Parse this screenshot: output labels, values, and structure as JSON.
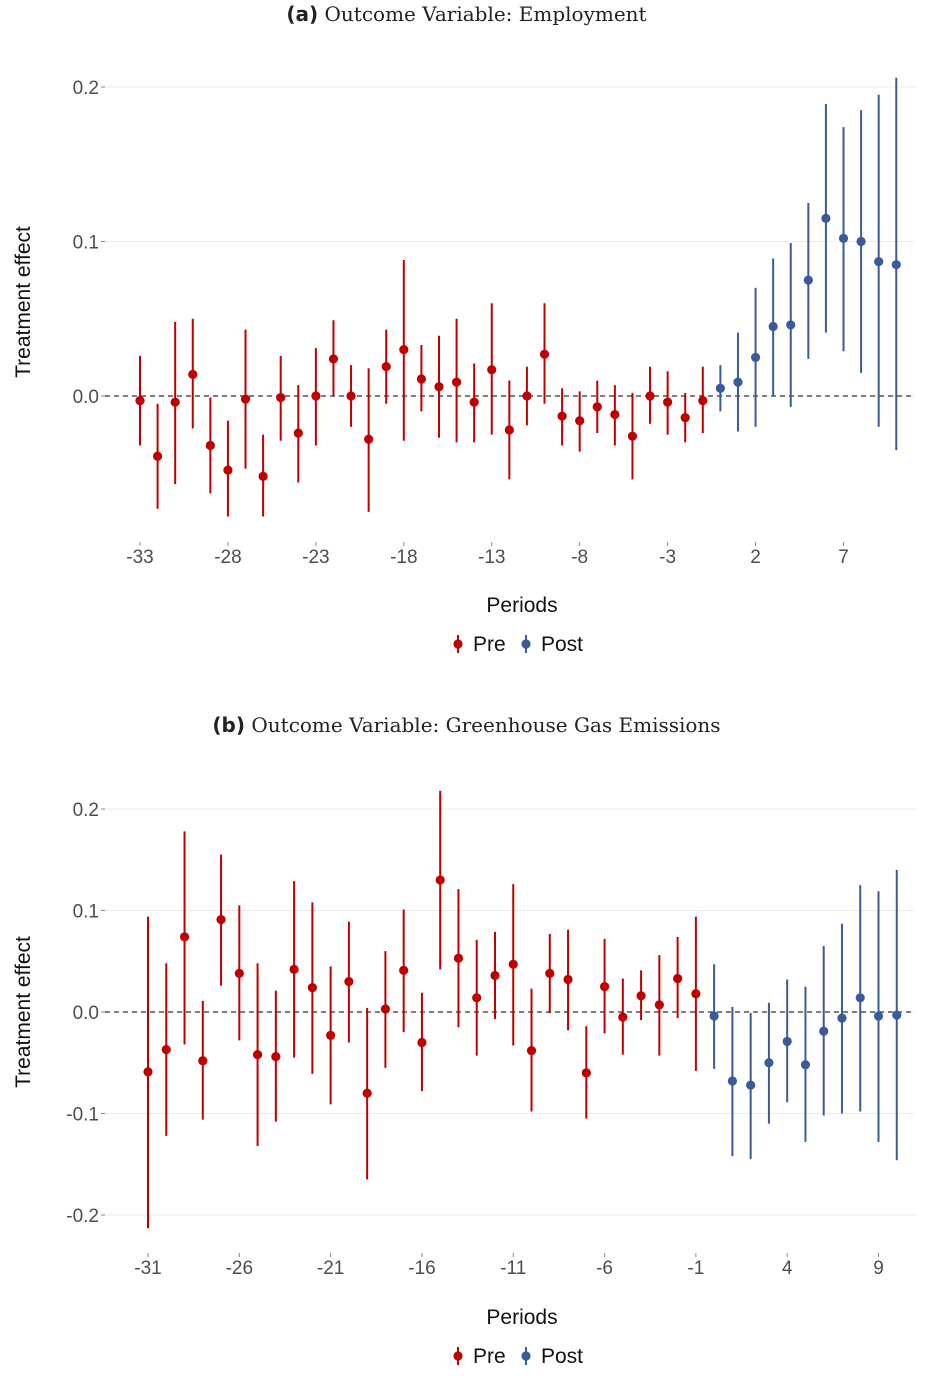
{
  "charts_meta": {
    "pre_color": "#c00000",
    "post_color": "#3a5a9a"
  },
  "chart_data": [
    {
      "type": "scatter",
      "panel_tag": "(a)",
      "title": "Outcome Variable: Employment",
      "xlabel": "Periods",
      "ylabel": "Treatment effect",
      "legend": [
        "Pre",
        "Post"
      ],
      "legend_placement": "bottom",
      "grid": true,
      "reference_line": 0.0,
      "xlim": [
        -34,
        12
      ],
      "ylim": [
        -0.1,
        0.2
      ],
      "xticks": [
        -33,
        -28,
        -23,
        -18,
        -13,
        -8,
        -3,
        2,
        7
      ],
      "xtick_labels": [
        "-33",
        "-28",
        "-23",
        "-18",
        "-13",
        "-8",
        "-3",
        "2",
        "7"
      ],
      "yticks": [
        0.0,
        0.1,
        0.2
      ],
      "ytick_labels": [
        "0.0",
        "0.1",
        "0.2"
      ],
      "series": [
        {
          "name": "Pre",
          "x": [
            -33,
            -32,
            -31,
            -30,
            -29,
            -28,
            -27,
            -26,
            -25,
            -24,
            -23,
            -22,
            -21,
            -20,
            -19,
            -18,
            -17,
            -16,
            -15,
            -14,
            -13,
            -12,
            -11,
            -10,
            -9,
            -8,
            -7,
            -6,
            -5,
            -4,
            -3,
            -2,
            -1
          ],
          "y": [
            -0.003,
            -0.039,
            -0.004,
            0.014,
            -0.032,
            -0.048,
            -0.002,
            -0.052,
            -0.001,
            -0.024,
            0.0,
            0.024,
            0.0,
            -0.028,
            0.019,
            0.03,
            0.011,
            0.006,
            0.009,
            -0.004,
            0.017,
            -0.022,
            0.0,
            0.027,
            -0.013,
            -0.016,
            -0.007,
            -0.012,
            -0.026,
            0.0,
            -0.004,
            -0.014,
            -0.003
          ],
          "lower": [
            -0.032,
            -0.073,
            -0.057,
            -0.021,
            -0.063,
            -0.078,
            -0.047,
            -0.078,
            -0.029,
            -0.056,
            -0.032,
            0.0,
            -0.02,
            -0.075,
            -0.005,
            -0.029,
            -0.01,
            -0.027,
            -0.03,
            -0.03,
            -0.025,
            -0.054,
            -0.019,
            -0.005,
            -0.032,
            -0.036,
            -0.024,
            -0.032,
            -0.054,
            -0.018,
            -0.025,
            -0.03,
            -0.024
          ],
          "upper": [
            0.026,
            -0.005,
            0.048,
            0.05,
            -0.001,
            -0.016,
            0.043,
            -0.025,
            0.026,
            0.007,
            0.031,
            0.049,
            0.02,
            0.018,
            0.043,
            0.088,
            0.033,
            0.039,
            0.05,
            0.021,
            0.06,
            0.01,
            0.019,
            0.06,
            0.005,
            0.003,
            0.01,
            0.007,
            0.002,
            0.019,
            0.016,
            0.002,
            0.019
          ]
        },
        {
          "name": "Post",
          "x": [
            0,
            1,
            2,
            3,
            4,
            5,
            6,
            7,
            8,
            9,
            10
          ],
          "y": [
            0.005,
            0.009,
            0.025,
            0.045,
            0.046,
            0.075,
            0.115,
            0.102,
            0.1,
            0.087,
            0.085
          ],
          "lower": [
            -0.01,
            -0.023,
            -0.02,
            0.0,
            -0.007,
            0.024,
            0.041,
            0.029,
            0.015,
            -0.02,
            -0.035
          ],
          "upper": [
            0.02,
            0.041,
            0.07,
            0.089,
            0.099,
            0.125,
            0.189,
            0.174,
            0.185,
            0.195,
            0.206
          ]
        }
      ]
    },
    {
      "type": "scatter",
      "panel_tag": "(b)",
      "title": "Outcome Variable: Greenhouse Gas Emissions",
      "xlabel": "Periods",
      "ylabel": "Treatment effect",
      "legend": [
        "Pre",
        "Post"
      ],
      "legend_placement": "bottom",
      "grid": true,
      "reference_line": 0.0,
      "xlim": [
        -32,
        11
      ],
      "ylim": [
        -0.22,
        0.22
      ],
      "xticks": [
        -31,
        -26,
        -21,
        -16,
        -11,
        -6,
        -1,
        4,
        9
      ],
      "xtick_labels": [
        "-31",
        "-26",
        "-21",
        "-16",
        "-11",
        "-6",
        "-1",
        "4",
        "9"
      ],
      "yticks": [
        -0.2,
        -0.1,
        0.0,
        0.1,
        0.2
      ],
      "ytick_labels": [
        "-0.2",
        "-0.1",
        "0.0",
        "0.1",
        "0.2"
      ],
      "series": [
        {
          "name": "Pre",
          "x": [
            -31,
            -30,
            -29,
            -28,
            -27,
            -26,
            -25,
            -24,
            -23,
            -22,
            -21,
            -20,
            -19,
            -18,
            -17,
            -16,
            -15,
            -14,
            -13,
            -12,
            -11,
            -10,
            -9,
            -8,
            -7,
            -6,
            -5,
            -4,
            -3,
            -2,
            -1
          ],
          "y": [
            -0.059,
            -0.037,
            0.074,
            -0.048,
            0.091,
            0.038,
            -0.042,
            -0.044,
            0.042,
            0.024,
            -0.023,
            0.03,
            -0.08,
            0.003,
            0.041,
            -0.03,
            0.13,
            0.053,
            0.014,
            0.036,
            0.047,
            -0.038,
            0.038,
            0.032,
            -0.06,
            0.025,
            -0.005,
            0.016,
            0.007,
            0.033,
            0.018
          ],
          "lower": [
            -0.213,
            -0.122,
            -0.032,
            -0.106,
            0.026,
            -0.028,
            -0.132,
            -0.108,
            -0.045,
            -0.061,
            -0.091,
            -0.03,
            -0.165,
            -0.055,
            -0.02,
            -0.078,
            0.042,
            -0.015,
            -0.043,
            -0.007,
            -0.033,
            -0.098,
            -0.001,
            -0.018,
            -0.105,
            -0.021,
            -0.042,
            -0.008,
            -0.043,
            -0.006,
            -0.058
          ],
          "upper": [
            0.094,
            0.048,
            0.178,
            0.011,
            0.155,
            0.105,
            0.048,
            0.021,
            0.129,
            0.108,
            0.045,
            0.089,
            0.004,
            0.06,
            0.101,
            0.019,
            0.218,
            0.121,
            0.071,
            0.079,
            0.126,
            0.023,
            0.077,
            0.081,
            -0.014,
            0.072,
            0.033,
            0.041,
            0.056,
            0.074,
            0.094
          ]
        },
        {
          "name": "Post",
          "x": [
            0,
            1,
            2,
            3,
            4,
            5,
            6,
            7,
            8,
            9,
            10
          ],
          "y": [
            -0.004,
            -0.068,
            -0.072,
            -0.05,
            -0.029,
            -0.052,
            -0.019,
            -0.006,
            0.014,
            -0.004,
            -0.003
          ],
          "lower": [
            -0.056,
            -0.142,
            -0.145,
            -0.11,
            -0.089,
            -0.128,
            -0.102,
            -0.1,
            -0.098,
            -0.128,
            -0.146
          ],
          "upper": [
            0.047,
            0.005,
            -0.001,
            0.009,
            0.032,
            0.025,
            0.065,
            0.087,
            0.125,
            0.119,
            0.14
          ]
        }
      ]
    }
  ]
}
